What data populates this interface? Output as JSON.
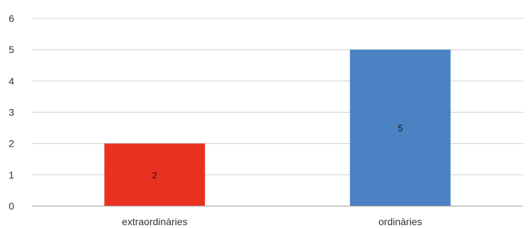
{
  "chart_data": {
    "type": "bar",
    "categories": [
      "extraordinàries",
      "ordinàries"
    ],
    "values": [
      2,
      5
    ],
    "colors": [
      "#e8321f",
      "#4a82c3"
    ],
    "data_labels": [
      "2",
      "5"
    ],
    "ylim": [
      0,
      6
    ],
    "yticks": [
      "0",
      "1",
      "2",
      "3",
      "4",
      "5",
      "6"
    ],
    "grid": true,
    "legend": "none"
  }
}
